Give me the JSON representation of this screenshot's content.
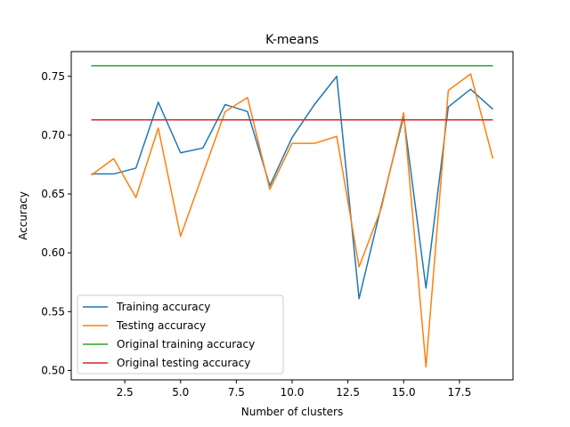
{
  "chart_data": {
    "type": "line",
    "title": "K-means",
    "xlabel": "Number of clusters",
    "ylabel": "Accuracy",
    "xlim": [
      0.1,
      19.9
    ],
    "ylim": [
      0.492,
      0.771
    ],
    "xticks": [
      2.5,
      5.0,
      7.5,
      10.0,
      12.5,
      15.0,
      17.5
    ],
    "xtick_labels": [
      "2.5",
      "5.0",
      "7.5",
      "10.0",
      "12.5",
      "15.0",
      "17.5"
    ],
    "yticks": [
      0.5,
      0.55,
      0.6,
      0.65,
      0.7,
      0.75
    ],
    "ytick_labels": [
      "0.50",
      "0.55",
      "0.60",
      "0.65",
      "0.70",
      "0.75"
    ],
    "grid": false,
    "legend_position": "lower-left",
    "x": [
      1,
      2,
      3,
      4,
      5,
      6,
      7,
      8,
      9,
      10,
      11,
      12,
      13,
      14,
      15,
      16,
      17,
      18,
      19
    ],
    "series": [
      {
        "name": "Training accuracy",
        "color": "#1f77b4",
        "values": [
          0.667,
          0.667,
          0.672,
          0.728,
          0.685,
          0.689,
          0.726,
          0.72,
          0.657,
          0.698,
          0.726,
          0.75,
          0.561,
          0.64,
          0.716,
          0.57,
          0.724,
          0.739,
          0.722
        ]
      },
      {
        "name": "Testing accuracy",
        "color": "#ff7f0e",
        "values": [
          0.666,
          0.68,
          0.647,
          0.706,
          0.614,
          0.667,
          0.72,
          0.732,
          0.654,
          0.693,
          0.693,
          0.699,
          0.588,
          0.638,
          0.719,
          0.503,
          0.738,
          0.752,
          0.68
        ]
      },
      {
        "name": "Original training accuracy",
        "color": "#2ca02c",
        "values": [
          0.759,
          0.759,
          0.759,
          0.759,
          0.759,
          0.759,
          0.759,
          0.759,
          0.759,
          0.759,
          0.759,
          0.759,
          0.759,
          0.759,
          0.759,
          0.759,
          0.759,
          0.759,
          0.759
        ]
      },
      {
        "name": "Original testing accuracy",
        "color": "#d62728",
        "values": [
          0.713,
          0.713,
          0.713,
          0.713,
          0.713,
          0.713,
          0.713,
          0.713,
          0.713,
          0.713,
          0.713,
          0.713,
          0.713,
          0.713,
          0.713,
          0.713,
          0.713,
          0.713,
          0.713
        ]
      }
    ]
  }
}
